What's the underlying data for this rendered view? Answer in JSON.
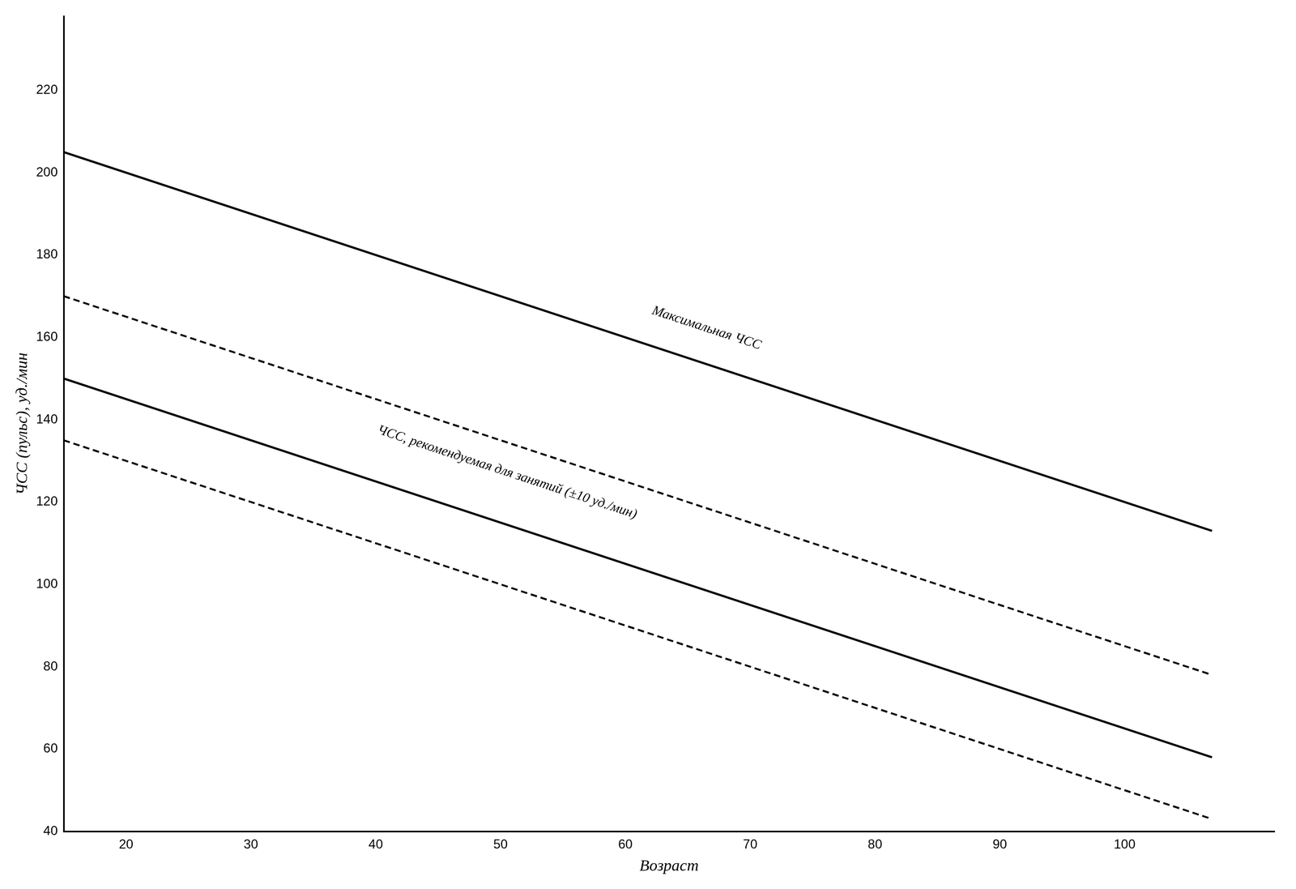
{
  "chart_data": {
    "type": "line",
    "xlabel": "Возраст",
    "ylabel": "ЧСС (пульс), уд./мин",
    "x": [
      15,
      107
    ],
    "series": [
      {
        "values": [
          205,
          113
        ],
        "line_style": "solid"
      },
      {
        "values": [
          170,
          78
        ],
        "line_style": "dashed"
      },
      {
        "values": [
          150,
          58
        ],
        "line_style": "solid"
      },
      {
        "values": [
          135,
          43
        ],
        "line_style": "dashed"
      }
    ],
    "color": "#000000",
    "xlim": [
      15,
      112
    ],
    "ylim": [
      40,
      238
    ],
    "xticks": [
      20,
      30,
      40,
      50,
      60,
      70,
      80,
      90,
      100
    ],
    "yticks": [
      40,
      60,
      80,
      100,
      120,
      140,
      160,
      180,
      200,
      220
    ],
    "grid": false,
    "annotations": [
      {
        "text": "Максимальная ЧСС",
        "x": 62,
        "y": 165
      },
      {
        "text": "ЧСС, рекомендуемая для занятий (±10 уд./мин)",
        "x": 40,
        "y": 136
      }
    ]
  }
}
